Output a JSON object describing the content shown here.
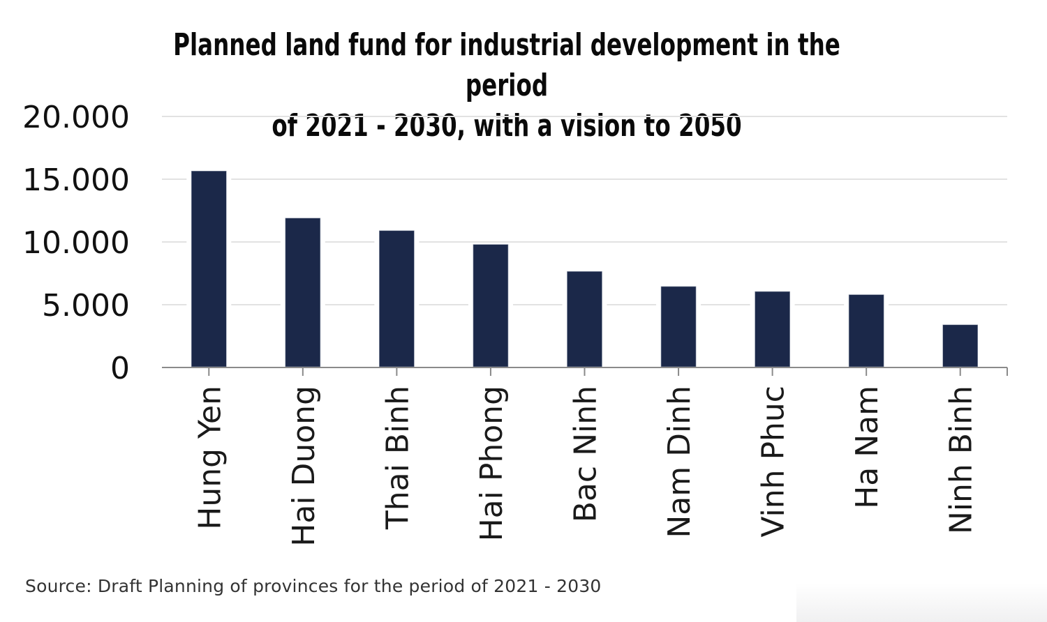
{
  "chart_data": {
    "type": "bar",
    "title": "Planned land fund for industrial development in the period of 2021 - 2030, with a vision to 2050",
    "title_lines": [
      "Planned land fund for industrial development in the period",
      "of 2021 - 2030, with a vision to 2050"
    ],
    "categories": [
      "Hung Yen",
      "Hai Duong",
      "Thai Binh",
      "Hai Phong",
      "Bac Ninh",
      "Nam Dinh",
      "Vinh Phuc",
      "Ha Nam",
      "Ninh Binh"
    ],
    "values": [
      15650,
      11900,
      10900,
      9800,
      7650,
      6450,
      6050,
      5800,
      3400
    ],
    "xlabel": "",
    "ylabel": "",
    "ylim": [
      0,
      20000
    ],
    "yticks": [
      0,
      5000,
      10000,
      15000,
      20000
    ],
    "ytick_labels": [
      "0",
      "5.000",
      "10.000",
      "15.000",
      "20.000"
    ],
    "grid": true,
    "legend": "none",
    "colors": {
      "bar": "#1b2849",
      "grid": "#e2e2e2",
      "axis": "#8a8a8a"
    },
    "source": "Source: Draft Planning of provinces for the period of 2021 - 2030"
  }
}
